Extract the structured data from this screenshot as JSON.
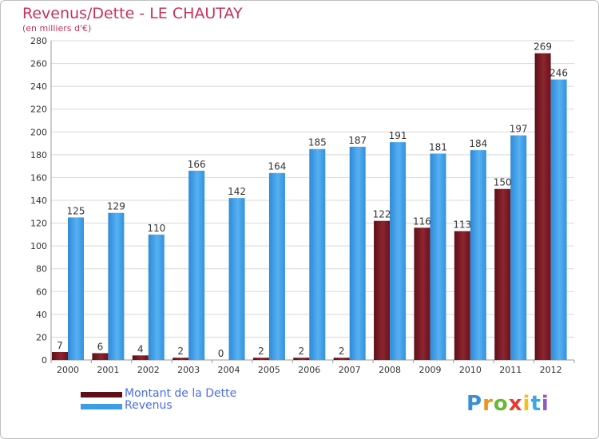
{
  "title": "Revenus/Dette - LE CHAUTAY",
  "subtitle": "(en milliers d'€)",
  "logo": "Proxiti",
  "colors": {
    "dette": "#7b1520",
    "revenus": "#3d9ce6",
    "grid": "#d8d8d8",
    "title": "#c8325a",
    "legend_text": "#4a6cf0"
  },
  "chart_data": {
    "type": "bar",
    "categories": [
      "2000",
      "2001",
      "2002",
      "2003",
      "2004",
      "2005",
      "2006",
      "2007",
      "2008",
      "2009",
      "2010",
      "2011",
      "2012"
    ],
    "series": [
      {
        "name": "Montant de la Dette",
        "values": [
          7,
          6,
          4,
          2,
          0,
          2,
          2,
          2,
          122,
          116,
          113,
          150,
          269
        ]
      },
      {
        "name": "Revenus",
        "values": [
          125,
          129,
          110,
          166,
          142,
          164,
          185,
          187,
          191,
          181,
          184,
          197,
          246
        ]
      }
    ],
    "ylim": [
      0,
      280
    ],
    "yticks": [
      0,
      20,
      40,
      60,
      80,
      100,
      120,
      140,
      160,
      180,
      200,
      220,
      240,
      260,
      280
    ],
    "grid": true,
    "legend_position": "bottom-left"
  }
}
